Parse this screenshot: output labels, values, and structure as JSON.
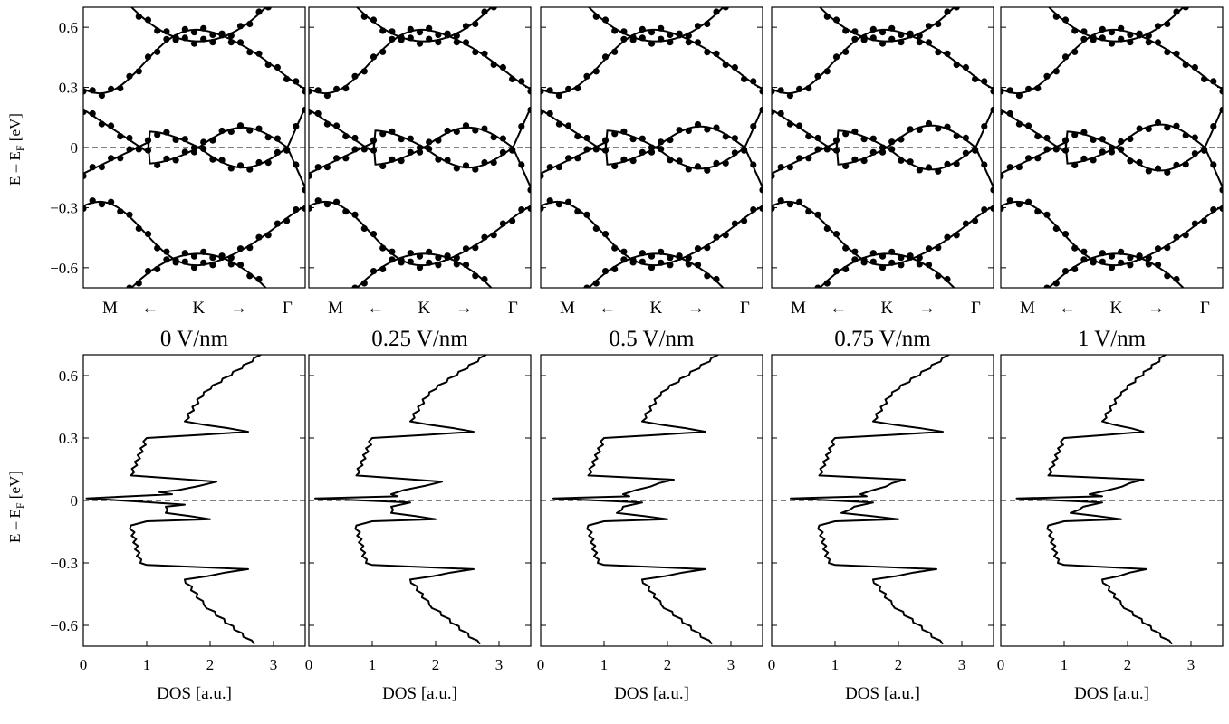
{
  "figure": {
    "band_ylabel": "E – E",
    "dos_ylabel": "E – E",
    "ylabel_subscript": "F",
    "ylabel_unit": "[eV]",
    "xlabel": "DOS [a.u.]",
    "kpath_labels": [
      "M",
      "←",
      "K",
      "→",
      "Γ"
    ],
    "yticks": [
      "0.6",
      "0.3",
      "0",
      "−0.3",
      "−0.6"
    ],
    "xticks": [
      "0",
      "1",
      "2",
      "3"
    ]
  },
  "chart_data": [
    {
      "type": "line",
      "panel": "bands",
      "field": "0 V/nm",
      "ylim": [
        -0.7,
        0.7
      ],
      "x_labels": [
        "M",
        "K",
        "Γ"
      ],
      "reference_line": 0,
      "splits": [
        0.08,
        0.1
      ],
      "crossings": [
        0.05,
        0.52,
        0.92
      ]
    },
    {
      "type": "line",
      "panel": "bands",
      "field": "0.25 V/nm",
      "ylim": [
        -0.7,
        0.7
      ],
      "x_labels": [
        "M",
        "K",
        "Γ"
      ],
      "reference_line": 0,
      "splits": [
        0.085,
        0.1
      ],
      "crossings": [
        0.05,
        0.52,
        0.92
      ]
    },
    {
      "type": "line",
      "panel": "bands",
      "field": "0.5 V/nm",
      "ylim": [
        -0.7,
        0.7
      ],
      "x_labels": [
        "M",
        "K",
        "Γ"
      ],
      "reference_line": 0,
      "splits": [
        0.085,
        0.105
      ],
      "crossings": [
        0.05,
        0.52,
        0.92
      ]
    },
    {
      "type": "line",
      "panel": "bands",
      "field": "0.75 V/nm",
      "ylim": [
        -0.7,
        0.7
      ],
      "x_labels": [
        "M",
        "K",
        "Γ"
      ],
      "reference_line": 0,
      "splits": [
        0.085,
        0.11
      ],
      "crossings": [
        0.05,
        0.52,
        0.92
      ]
    },
    {
      "type": "line",
      "panel": "bands",
      "field": "1 V/nm",
      "ylim": [
        -0.7,
        0.7
      ],
      "x_labels": [
        "M",
        "K",
        "Γ"
      ],
      "reference_line": 0,
      "splits": [
        0.08,
        0.115
      ],
      "crossings": [
        0.05,
        0.52,
        0.92
      ]
    },
    {
      "type": "line",
      "panel": "dos",
      "field": "0 V/nm",
      "xlim": [
        0,
        3.5
      ],
      "ylim": [
        -0.7,
        0.7
      ],
      "xlabel": "DOS [a.u.]",
      "points": [
        [
          0.9,
          -0.3
        ],
        [
          1.0,
          -0.31
        ],
        [
          2.6,
          -0.33
        ],
        [
          1.6,
          -0.38
        ],
        [
          1.9,
          -0.5
        ],
        [
          2.7,
          -0.69
        ],
        [
          0.75,
          -0.12
        ],
        [
          1.0,
          -0.1
        ],
        [
          2.0,
          -0.09
        ],
        [
          1.3,
          -0.06
        ],
        [
          1.3,
          -0.03
        ],
        [
          1.6,
          -0.02
        ],
        [
          0.05,
          0.01
        ],
        [
          1.2,
          0.04
        ],
        [
          1.4,
          0.03
        ],
        [
          1.5,
          0.05
        ],
        [
          2.1,
          0.09
        ],
        [
          0.75,
          0.12
        ],
        [
          1.0,
          0.3
        ],
        [
          2.6,
          0.33
        ],
        [
          1.6,
          0.38
        ],
        [
          1.9,
          0.52
        ],
        [
          2.8,
          0.7
        ]
      ]
    },
    {
      "type": "line",
      "panel": "dos",
      "field": "0.25 V/nm",
      "xlim": [
        0,
        3.5
      ],
      "ylim": [
        -0.7,
        0.7
      ],
      "xlabel": "DOS [a.u.]",
      "points": [
        [
          0.9,
          -0.3
        ],
        [
          1.0,
          -0.31
        ],
        [
          2.6,
          -0.33
        ],
        [
          1.6,
          -0.38
        ],
        [
          1.9,
          -0.5
        ],
        [
          2.7,
          -0.69
        ],
        [
          0.75,
          -0.12
        ],
        [
          1.0,
          -0.1
        ],
        [
          2.0,
          -0.09
        ],
        [
          1.3,
          -0.06
        ],
        [
          1.3,
          -0.03
        ],
        [
          1.6,
          -0.01
        ],
        [
          0.1,
          0.01
        ],
        [
          1.3,
          0.03
        ],
        [
          1.4,
          0.02
        ],
        [
          1.5,
          0.05
        ],
        [
          2.1,
          0.09
        ],
        [
          0.75,
          0.12
        ],
        [
          1.0,
          0.3
        ],
        [
          2.6,
          0.33
        ],
        [
          1.6,
          0.38
        ],
        [
          1.9,
          0.52
        ],
        [
          2.8,
          0.7
        ]
      ]
    },
    {
      "type": "line",
      "panel": "dos",
      "field": "0.5 V/nm",
      "xlim": [
        0,
        3.5
      ],
      "ylim": [
        -0.7,
        0.7
      ],
      "xlabel": "DOS [a.u.]",
      "points": [
        [
          0.9,
          -0.3
        ],
        [
          1.0,
          -0.31
        ],
        [
          2.6,
          -0.33
        ],
        [
          1.6,
          -0.38
        ],
        [
          1.9,
          -0.5
        ],
        [
          2.7,
          -0.69
        ],
        [
          0.75,
          -0.12
        ],
        [
          1.0,
          -0.1
        ],
        [
          2.0,
          -0.09
        ],
        [
          1.2,
          -0.06
        ],
        [
          1.3,
          -0.03
        ],
        [
          1.6,
          -0.01
        ],
        [
          0.2,
          0.01
        ],
        [
          1.3,
          0.03
        ],
        [
          1.4,
          0.02
        ],
        [
          1.5,
          0.05
        ],
        [
          2.1,
          0.1
        ],
        [
          0.75,
          0.12
        ],
        [
          1.0,
          0.3
        ],
        [
          2.6,
          0.33
        ],
        [
          1.6,
          0.38
        ],
        [
          1.9,
          0.52
        ],
        [
          2.8,
          0.7
        ]
      ]
    },
    {
      "type": "line",
      "panel": "dos",
      "field": "0.75 V/nm",
      "xlim": [
        0,
        3.5
      ],
      "ylim": [
        -0.7,
        0.7
      ],
      "xlabel": "DOS [a.u.]",
      "points": [
        [
          0.9,
          -0.3
        ],
        [
          1.0,
          -0.31
        ],
        [
          2.6,
          -0.33
        ],
        [
          1.6,
          -0.38
        ],
        [
          1.9,
          -0.5
        ],
        [
          2.7,
          -0.69
        ],
        [
          0.75,
          -0.12
        ],
        [
          1.0,
          -0.1
        ],
        [
          2.0,
          -0.09
        ],
        [
          1.1,
          -0.06
        ],
        [
          1.3,
          -0.03
        ],
        [
          1.6,
          -0.01
        ],
        [
          0.3,
          0.01
        ],
        [
          1.4,
          0.03
        ],
        [
          1.5,
          0.02
        ],
        [
          1.6,
          0.05
        ],
        [
          2.1,
          0.1
        ],
        [
          0.75,
          0.12
        ],
        [
          1.0,
          0.3
        ],
        [
          2.7,
          0.33
        ],
        [
          1.6,
          0.38
        ],
        [
          1.9,
          0.52
        ],
        [
          2.8,
          0.7
        ]
      ]
    },
    {
      "type": "line",
      "panel": "dos",
      "field": "1 V/nm",
      "xlim": [
        0,
        3.5
      ],
      "ylim": [
        -0.7,
        0.7
      ],
      "xlabel": "DOS [a.u.]",
      "points": [
        [
          0.9,
          -0.3
        ],
        [
          1.0,
          -0.31
        ],
        [
          2.3,
          -0.33
        ],
        [
          1.6,
          -0.38
        ],
        [
          1.9,
          -0.5
        ],
        [
          2.7,
          -0.69
        ],
        [
          0.75,
          -0.12
        ],
        [
          1.0,
          -0.1
        ],
        [
          1.9,
          -0.09
        ],
        [
          1.1,
          -0.06
        ],
        [
          1.3,
          -0.03
        ],
        [
          1.6,
          -0.01
        ],
        [
          0.25,
          0.01
        ],
        [
          1.4,
          0.03
        ],
        [
          1.6,
          0.02
        ],
        [
          1.7,
          0.05
        ],
        [
          2.25,
          0.1
        ],
        [
          0.75,
          0.12
        ],
        [
          1.0,
          0.3
        ],
        [
          2.25,
          0.33
        ],
        [
          1.6,
          0.38
        ],
        [
          1.9,
          0.52
        ],
        [
          2.6,
          0.7
        ]
      ]
    }
  ]
}
